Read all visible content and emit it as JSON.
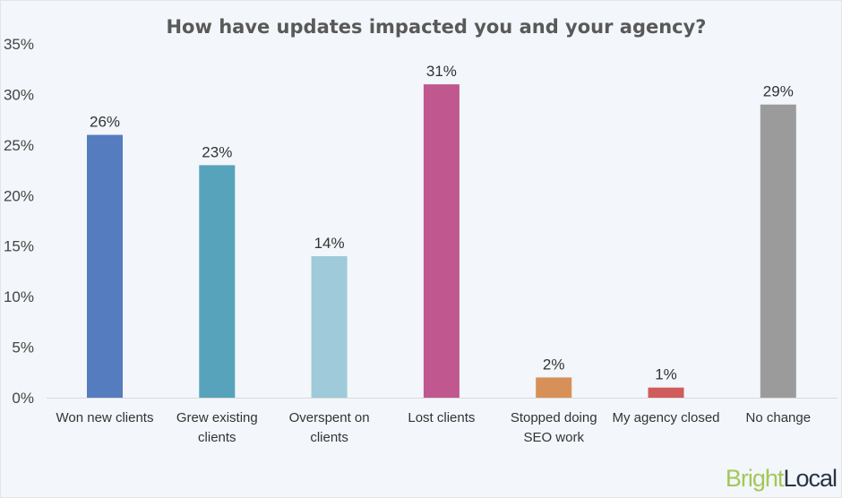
{
  "chart_data": {
    "type": "bar",
    "title": "How have updates impacted you and your agency?",
    "categories": [
      [
        "Won new clients"
      ],
      [
        "Grew existing",
        "clients"
      ],
      [
        "Overspent on",
        "clients"
      ],
      [
        "Lost clients"
      ],
      [
        "Stopped doing",
        "SEO work"
      ],
      [
        "My agency closed"
      ],
      [
        "No change"
      ]
    ],
    "values": [
      26,
      23,
      14,
      31,
      2,
      1,
      29
    ],
    "data_labels": [
      "26%",
      "23%",
      "14%",
      "31%",
      "2%",
      "1%",
      "29%"
    ],
    "colors": [
      "#557cbf",
      "#57a3bc",
      "#9fcad9",
      "#c0578f",
      "#d79057",
      "#d05c5c",
      "#9b9b9b"
    ],
    "ylim": [
      0,
      35
    ],
    "yticks": [
      "0%",
      "5%",
      "10%",
      "15%",
      "20%",
      "25%",
      "30%",
      "35%"
    ],
    "grid": false,
    "legend": "none"
  },
  "logo": {
    "part1": "Bright",
    "part2": "Local"
  }
}
